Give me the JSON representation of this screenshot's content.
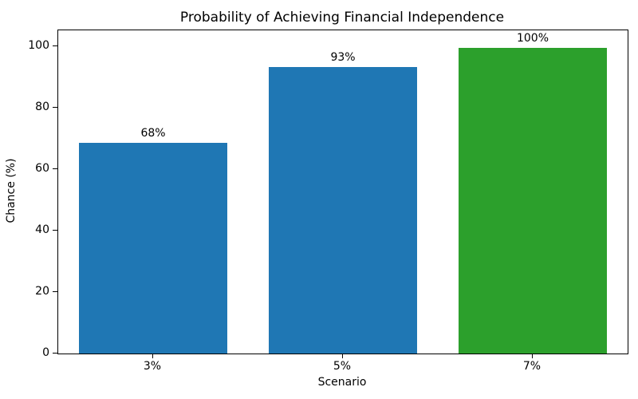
{
  "chart_data": {
    "type": "bar",
    "title": "Probability of Achieving Financial Independence",
    "xlabel": "Scenario",
    "ylabel": "Chance (%)",
    "categories": [
      "3%",
      "5%",
      "7%"
    ],
    "values": [
      68.5,
      93.3,
      99.5
    ],
    "bar_labels": [
      "68%",
      "93%",
      "100%"
    ],
    "bar_colors": [
      "#1f77b4",
      "#1f77b4",
      "#2ca02c"
    ],
    "ylim": [
      0,
      105.2
    ],
    "yticks": [
      0,
      20,
      40,
      60,
      80,
      100
    ],
    "grid": "off",
    "legend_position": "none",
    "background_color": "#ffffff",
    "spine_color": "#000000"
  }
}
